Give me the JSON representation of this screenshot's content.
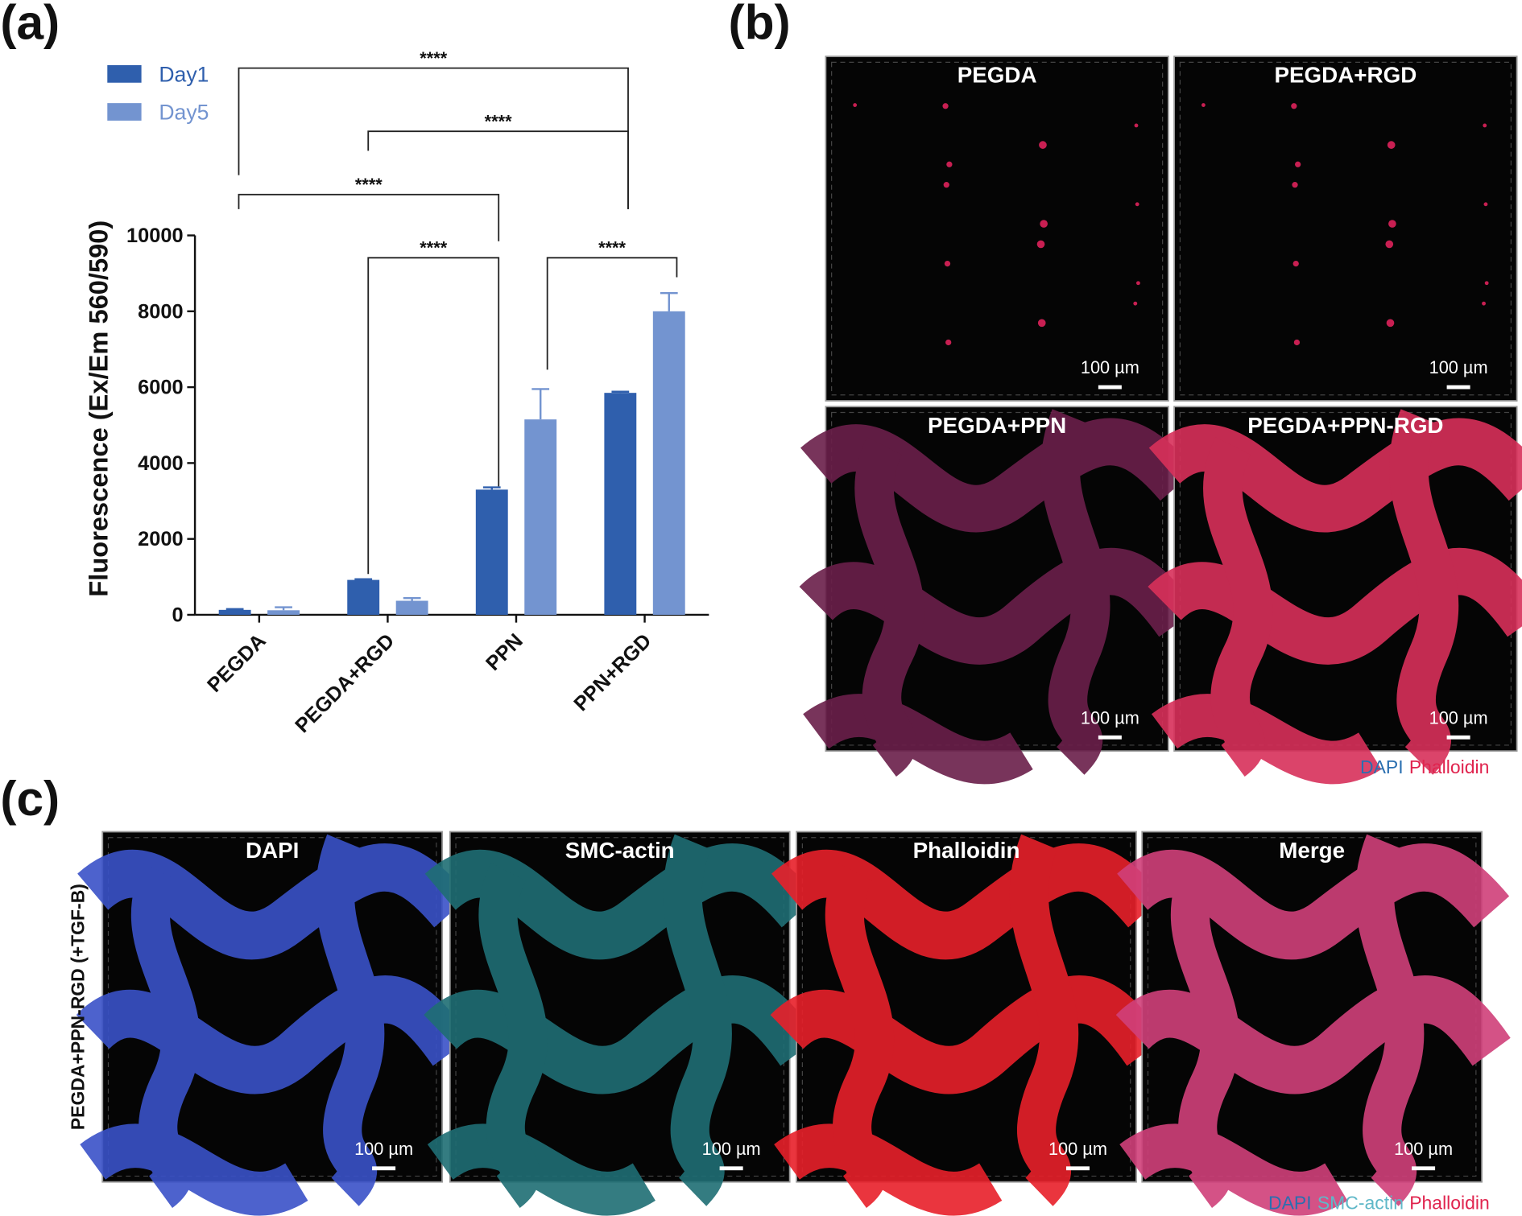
{
  "panel_labels": [
    "(a)",
    "(b)",
    "(c)"
  ],
  "chart_data": {
    "type": "bar",
    "y_label": "Fluorescence (Ex/Em 560/590)",
    "categories": [
      "PEGDA",
      "PEGDA+RGD",
      "PPN",
      "PPN+RGD"
    ],
    "series": [
      {
        "name": "Day1",
        "color": "#2f5fad",
        "values": [
          130,
          920,
          3300,
          5850
        ],
        "errors": [
          20,
          20,
          60,
          30
        ]
      },
      {
        "name": "Day5",
        "color": "#7394d0",
        "values": [
          120,
          370,
          5150,
          8000
        ],
        "errors": [
          80,
          70,
          800,
          480
        ]
      }
    ],
    "ylim": [
      0,
      10000
    ],
    "yticks": [
      0,
      2000,
      4000,
      6000,
      8000,
      10000
    ],
    "annotations": [
      "****",
      "****",
      "****",
      "****",
      "****"
    ]
  },
  "panel_b": {
    "images": [
      {
        "label": "PEGDA",
        "scale_bar": "100 µm"
      },
      {
        "label": "PEGDA+RGD",
        "scale_bar": "100 µm"
      },
      {
        "label": "PEGDA+PPN",
        "scale_bar": "100 µm"
      },
      {
        "label": "PEGDA+PPN-RGD",
        "scale_bar": "100 µm"
      }
    ],
    "legend": [
      {
        "text": "DAPI",
        "color": "#2a6fb0"
      },
      {
        "text": "Phalloidin",
        "color": "#e0244e"
      }
    ]
  },
  "panel_c": {
    "row_label": "PEGDA+PPN-RGD (+TGF-B)",
    "images": [
      {
        "label": "DAPI",
        "scale_bar": "100 µm"
      },
      {
        "label": "SMC-actin",
        "scale_bar": "100 µm"
      },
      {
        "label": "Phalloidin",
        "scale_bar": "100 µm"
      },
      {
        "label": "Merge",
        "scale_bar": "100 µm"
      }
    ],
    "legend": [
      {
        "text": "DAPI",
        "color": "#2a6fb0"
      },
      {
        "text": "SMC-actin",
        "color": "#5fb8c8"
      },
      {
        "text": "Phalloidin",
        "color": "#e0244e"
      }
    ]
  }
}
